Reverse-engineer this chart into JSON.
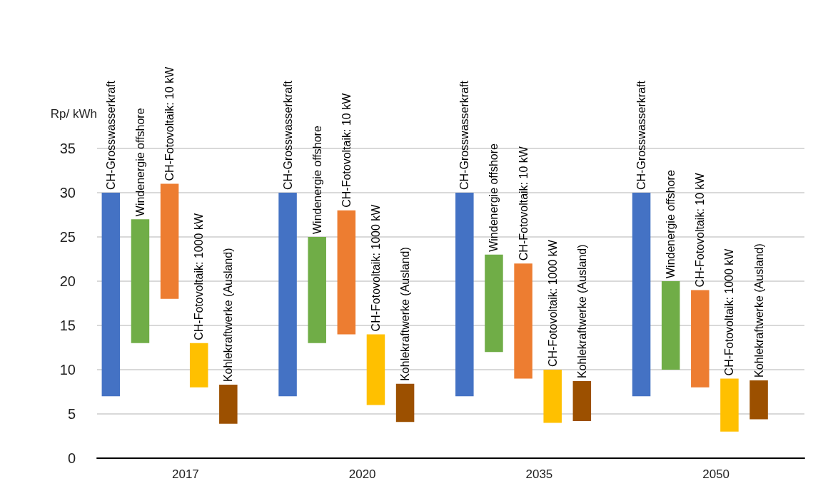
{
  "chart_data": {
    "type": "bar",
    "ylabel": "Rp/ kWh",
    "categories": [
      "2017",
      "2020",
      "2035",
      "2050"
    ],
    "series": [
      {
        "name": "CH-Grosswasserkraft",
        "color": "#4472c4",
        "base": [
          7,
          7,
          7,
          7
        ],
        "values": [
          23,
          23,
          23,
          23
        ]
      },
      {
        "name": "Windenergie offshore",
        "color": "#70ad47",
        "base": [
          13,
          13,
          12,
          10
        ],
        "values": [
          14,
          12,
          11,
          10
        ]
      },
      {
        "name": "CH-Fotovoltaik: 10 kW",
        "color": "#ed7d31",
        "base": [
          18,
          14,
          9,
          8
        ],
        "values": [
          13,
          14,
          13,
          11
        ]
      },
      {
        "name": "CH-Fotovoltaik: 1000 kW",
        "color": "#ffc000",
        "base": [
          8,
          6,
          4,
          3
        ],
        "values": [
          5,
          8,
          6,
          6
        ]
      },
      {
        "name": "Kohlekraftwerke (Ausland)",
        "color": "#9c5000",
        "base": [
          3.9,
          4.1,
          4.2,
          4.4
        ],
        "values": [
          4.4,
          4.3,
          4.5,
          4.4
        ]
      }
    ],
    "ylim": [
      0,
      35
    ],
    "yticks": [
      0,
      5,
      10,
      15,
      20,
      25,
      30,
      35
    ],
    "grid": "y",
    "legend": false
  }
}
